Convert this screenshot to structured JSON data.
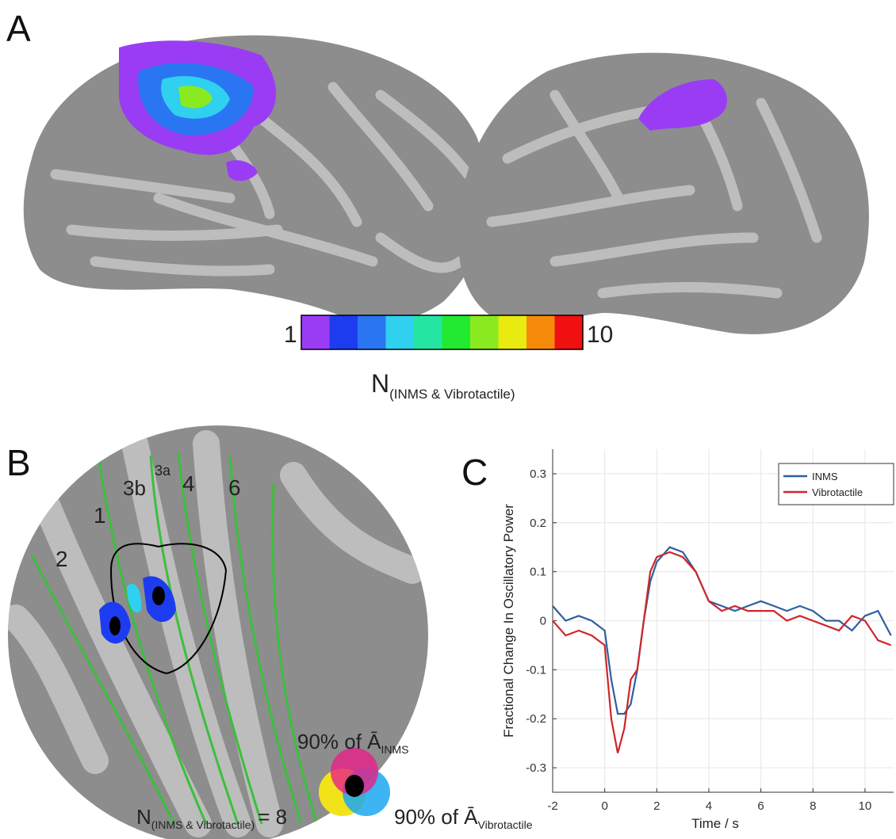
{
  "panel_a": {
    "label": "A",
    "colorbar": {
      "min_label": "1",
      "max_label": "10",
      "colors": [
        "#9b3cf5",
        "#1d3cf0",
        "#2a76f2",
        "#2fd0f0",
        "#24e6a2",
        "#22ea30",
        "#8aea20",
        "#e8ea10",
        "#f58a0a",
        "#f01010"
      ],
      "title": "N",
      "title_sub": "(INMS & Vibrotactile)"
    }
  },
  "panel_b": {
    "label": "B",
    "regions": [
      "2",
      "1",
      "3b",
      "3a",
      "4",
      "6"
    ],
    "legend": {
      "inms_text": "90% of Ā",
      "inms_sub": "INMS",
      "vibro_text": "90% of Ā",
      "vibro_sub": "Vibrotactile",
      "n_text": "N",
      "n_sub": "(INMS & Vibrotactile)",
      "n_value": "= 8"
    }
  },
  "panel_c": {
    "label": "C",
    "chart_data": {
      "type": "line",
      "x_label": "Time / s",
      "y_label": "Fractional Change In Oscillatory Power",
      "x": [
        -2,
        -1.5,
        -1,
        -0.5,
        0,
        0.25,
        0.5,
        0.75,
        1,
        1.25,
        1.5,
        1.75,
        2,
        2.5,
        3,
        3.5,
        4,
        4.5,
        5,
        5.5,
        6,
        6.5,
        7,
        7.5,
        8,
        8.5,
        9,
        9.5,
        10,
        10.5,
        11
      ],
      "series": [
        {
          "name": "INMS",
          "color": "#2f5f9e",
          "values": [
            0.03,
            0.0,
            0.01,
            0.0,
            -0.02,
            -0.12,
            -0.19,
            -0.19,
            -0.17,
            -0.1,
            0.0,
            0.08,
            0.12,
            0.15,
            0.14,
            0.1,
            0.04,
            0.03,
            0.02,
            0.03,
            0.04,
            0.03,
            0.02,
            0.03,
            0.02,
            0.0,
            0.0,
            -0.02,
            0.01,
            0.02,
            -0.03
          ]
        },
        {
          "name": "Vibrotactile",
          "color": "#d0252a",
          "values": [
            0.0,
            -0.03,
            -0.02,
            -0.03,
            -0.05,
            -0.2,
            -0.27,
            -0.22,
            -0.12,
            -0.1,
            0.0,
            0.1,
            0.13,
            0.14,
            0.13,
            0.1,
            0.04,
            0.02,
            0.03,
            0.02,
            0.02,
            0.02,
            0.0,
            0.01,
            0.0,
            -0.01,
            -0.02,
            0.01,
            0.0,
            -0.04,
            -0.05
          ]
        }
      ],
      "xlim": [
        -2,
        11.1
      ],
      "ylim": [
        -0.35,
        0.35
      ],
      "xticks": [
        -2,
        0,
        2,
        4,
        6,
        8,
        10
      ],
      "yticks": [
        -0.3,
        -0.2,
        -0.1,
        0,
        0.1,
        0.2,
        0.3
      ],
      "grid": true,
      "legend": "upper right"
    }
  }
}
